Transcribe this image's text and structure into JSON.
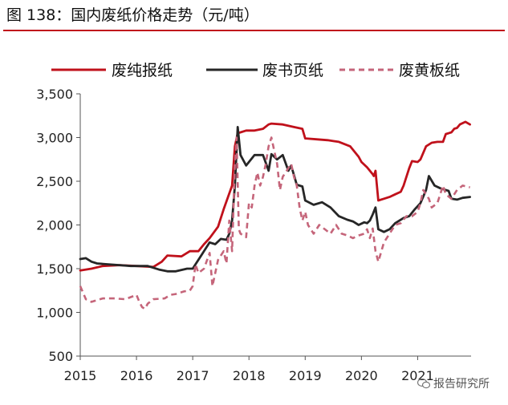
{
  "header": {
    "title": "图 138：国内废纸价格走势（元/吨）"
  },
  "watermark": {
    "text": "报告研究所"
  },
  "colors": {
    "title_rule": "#c0111b"
  },
  "chart_data": {
    "type": "line",
    "title": "图 138：国内废纸价格走势（元/吨）",
    "xlabel": "",
    "ylabel": "",
    "xlim": [
      2015.0,
      2021.95
    ],
    "ylim": [
      500,
      3500
    ],
    "yticks": [
      500,
      1000,
      1500,
      2000,
      2500,
      3000,
      3500
    ],
    "ytick_labels": [
      "500",
      "1,000",
      "1,500",
      "2,000",
      "2,500",
      "3,000",
      "3,500"
    ],
    "xticks": [
      2015,
      2016,
      2017,
      2018,
      2019,
      2020,
      2021
    ],
    "xtick_labels": [
      "2015",
      "2016",
      "2017",
      "2018",
      "2019",
      "2020",
      "2021"
    ],
    "grid": false,
    "legend_position": "top",
    "series": [
      {
        "name": "废纯报纸",
        "color": "#c0111b",
        "dashed": false,
        "x": [
          2015.0,
          2015.2,
          2015.4,
          2015.7,
          2016.0,
          2016.3,
          2016.45,
          2016.55,
          2016.8,
          2016.95,
          2017.1,
          2017.2,
          2017.3,
          2017.45,
          2017.55,
          2017.7,
          2017.75,
          2017.8,
          2017.85,
          2017.95,
          2018.1,
          2018.25,
          2018.35,
          2018.4,
          2018.6,
          2018.8,
          2018.95,
          2019.0,
          2019.2,
          2019.4,
          2019.5,
          2019.6,
          2019.8,
          2019.95,
          2020.0,
          2020.1,
          2020.2,
          2020.22,
          2020.25,
          2020.3,
          2020.4,
          2020.5,
          2020.6,
          2020.7,
          2020.75,
          2020.85,
          2020.9,
          2021.0,
          2021.05,
          2021.15,
          2021.25,
          2021.35,
          2021.45,
          2021.5,
          2021.55,
          2021.6,
          2021.65,
          2021.7,
          2021.75,
          2021.85,
          2021.93
        ],
        "values": [
          1480,
          1500,
          1530,
          1540,
          1530,
          1520,
          1580,
          1650,
          1640,
          1700,
          1700,
          1780,
          1850,
          1980,
          2180,
          2450,
          2900,
          3050,
          3060,
          3080,
          3080,
          3100,
          3150,
          3160,
          3150,
          3120,
          3100,
          2990,
          2980,
          2970,
          2960,
          2950,
          2900,
          2780,
          2720,
          2660,
          2580,
          2560,
          2620,
          2280,
          2300,
          2320,
          2350,
          2380,
          2450,
          2650,
          2730,
          2720,
          2750,
          2900,
          2940,
          2950,
          2950,
          3040,
          3050,
          3060,
          3100,
          3110,
          3150,
          3180,
          3150
        ]
      },
      {
        "name": "废书页纸",
        "color": "#262626",
        "dashed": false,
        "x": [
          2015.0,
          2015.1,
          2015.2,
          2015.3,
          2015.5,
          2015.7,
          2015.9,
          2016.2,
          2016.4,
          2016.55,
          2016.7,
          2016.9,
          2017.0,
          2017.15,
          2017.3,
          2017.4,
          2017.5,
          2017.6,
          2017.65,
          2017.7,
          2017.75,
          2017.8,
          2017.85,
          2017.95,
          2018.1,
          2018.25,
          2018.35,
          2018.4,
          2018.5,
          2018.6,
          2018.7,
          2018.75,
          2018.85,
          2018.95,
          2019.0,
          2019.15,
          2019.3,
          2019.45,
          2019.6,
          2019.75,
          2019.85,
          2019.95,
          2020.05,
          2020.1,
          2020.15,
          2020.2,
          2020.25,
          2020.3,
          2020.4,
          2020.5,
          2020.6,
          2020.75,
          2020.85,
          2020.95,
          2021.05,
          2021.15,
          2021.2,
          2021.3,
          2021.4,
          2021.5,
          2021.55,
          2021.6,
          2021.7,
          2021.8,
          2021.93
        ],
        "values": [
          1610,
          1620,
          1580,
          1560,
          1550,
          1540,
          1530,
          1530,
          1490,
          1470,
          1470,
          1500,
          1500,
          1650,
          1800,
          1780,
          1840,
          1830,
          1900,
          2050,
          2450,
          3120,
          2800,
          2680,
          2800,
          2800,
          2620,
          2810,
          2750,
          2800,
          2620,
          2680,
          2460,
          2440,
          2280,
          2230,
          2260,
          2200,
          2100,
          2060,
          2040,
          2000,
          2030,
          2020,
          2050,
          2120,
          2200,
          1950,
          1920,
          1950,
          2020,
          2080,
          2100,
          2180,
          2250,
          2400,
          2560,
          2450,
          2420,
          2400,
          2390,
          2300,
          2290,
          2310,
          2320
        ]
      },
      {
        "name": "废黄板纸",
        "color": "#c5657a",
        "dashed": true,
        "x": [
          2015.0,
          2015.1,
          2015.2,
          2015.3,
          2015.4,
          2015.6,
          2015.8,
          2016.0,
          2016.05,
          2016.1,
          2016.15,
          2016.2,
          2016.3,
          2016.5,
          2016.6,
          2016.7,
          2016.85,
          2016.95,
          2017.0,
          2017.05,
          2017.1,
          2017.2,
          2017.3,
          2017.35,
          2017.45,
          2017.55,
          2017.6,
          2017.65,
          2017.7,
          2017.75,
          2017.78,
          2017.82,
          2017.85,
          2017.9,
          2017.95,
          2018.0,
          2018.05,
          2018.1,
          2018.15,
          2018.2,
          2018.25,
          2018.3,
          2018.35,
          2018.4,
          2018.45,
          2018.5,
          2018.55,
          2018.6,
          2018.65,
          2018.7,
          2018.75,
          2018.8,
          2018.85,
          2018.9,
          2018.95,
          2019.0,
          2019.05,
          2019.15,
          2019.25,
          2019.35,
          2019.45,
          2019.55,
          2019.65,
          2019.75,
          2019.85,
          2019.95,
          2020.05,
          2020.1,
          2020.15,
          2020.2,
          2020.25,
          2020.3,
          2020.4,
          2020.5,
          2020.6,
          2020.7,
          2020.8,
          2020.9,
          2021.0,
          2021.05,
          2021.1,
          2021.2,
          2021.25,
          2021.35,
          2021.45,
          2021.5,
          2021.6,
          2021.7,
          2021.8,
          2021.93
        ],
        "values": [
          1300,
          1150,
          1120,
          1140,
          1160,
          1160,
          1150,
          1200,
          1120,
          1060,
          1040,
          1100,
          1150,
          1160,
          1200,
          1210,
          1240,
          1250,
          1300,
          1550,
          1450,
          1500,
          1680,
          1300,
          1600,
          1700,
          1560,
          2050,
          1700,
          2700,
          3000,
          1950,
          1900,
          1880,
          1860,
          2250,
          2200,
          2450,
          2600,
          2450,
          2550,
          2700,
          2900,
          3000,
          2850,
          2700,
          2400,
          2550,
          2600,
          2650,
          2700,
          2550,
          2450,
          2200,
          2050,
          2150,
          2000,
          1900,
          2000,
          1950,
          1900,
          2000,
          1900,
          1880,
          1850,
          1880,
          1900,
          1950,
          1850,
          1960,
          1700,
          1580,
          1800,
          1900,
          2000,
          2020,
          2100,
          2100,
          2150,
          2250,
          2400,
          2300,
          2200,
          2250,
          2450,
          2350,
          2300,
          2400,
          2450,
          2430
        ]
      }
    ]
  }
}
